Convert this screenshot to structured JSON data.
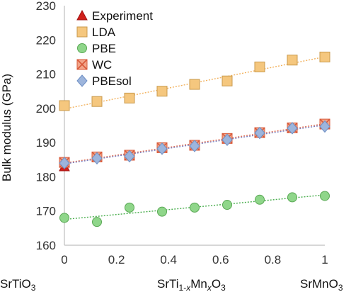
{
  "chart_data": {
    "type": "scatter",
    "title": "",
    "ylabel": "Bulk modulus (GPa)",
    "xlim": [
      0,
      1
    ],
    "ylim": [
      160,
      230
    ],
    "x_ticks": [
      0,
      0.2,
      0.4,
      0.6,
      0.8,
      1
    ],
    "x_tick_labels": [
      "0",
      "0.2",
      "0.4",
      "0.6",
      "0.8",
      "1"
    ],
    "y_ticks": [
      160,
      170,
      180,
      190,
      200,
      210,
      220,
      230
    ],
    "y_tick_labels": [
      "160",
      "170",
      "180",
      "190",
      "200",
      "210",
      "220",
      "230"
    ],
    "grid": false,
    "legend_position": "top-left",
    "category_labels": {
      "left": {
        "pre": "SrTiO",
        "sub": "3"
      },
      "middle": {
        "p1": "SrTi",
        "s1": "1-",
        "s2": "x",
        "p2": "Mn",
        "s3": "x",
        "p3": "O",
        "s4": "3"
      },
      "right": {
        "pre": "SrMnO",
        "sub": "3"
      }
    },
    "series": [
      {
        "name": "Experiment",
        "marker": "triangle",
        "color": "#d0201b",
        "edge": "#a01010",
        "trend": false,
        "x": [
          0
        ],
        "y": [
          183
        ]
      },
      {
        "name": "LDA",
        "marker": "square",
        "color": "#f5c77e",
        "edge": "#c99a4c",
        "trend": true,
        "trend_color": "#f2b25e",
        "x": [
          0,
          0.125,
          0.25,
          0.375,
          0.5,
          0.625,
          0.75,
          0.875,
          1
        ],
        "y": [
          200.8,
          202,
          203,
          205,
          207,
          208,
          212.1,
          214.1,
          215
        ]
      },
      {
        "name": "PBE",
        "marker": "circle",
        "color": "#8fd68a",
        "edge": "#5aa855",
        "trend": true,
        "trend_color": "#4caf50",
        "x": [
          0,
          0.125,
          0.25,
          0.375,
          0.5,
          0.625,
          0.75,
          0.875,
          1
        ],
        "y": [
          168,
          166.8,
          171,
          169.8,
          171,
          171.8,
          173.3,
          174,
          174.4
        ]
      },
      {
        "name": "WC",
        "marker": "x-square",
        "color": "#f2a58a",
        "edge": "#d85a3a",
        "trend": true,
        "trend_color": "#e0735a",
        "x": [
          0,
          0.125,
          0.25,
          0.375,
          0.5,
          0.625,
          0.75,
          0.875,
          1
        ],
        "y": [
          184.2,
          185.8,
          186.3,
          188.5,
          189.2,
          191.2,
          192.9,
          194.3,
          195.4
        ]
      },
      {
        "name": "PBEsol",
        "marker": "diamond",
        "color": "#9db5dc",
        "edge": "#6e8fc4",
        "trend": true,
        "trend_color": "#7a7fc0",
        "x": [
          0,
          0.125,
          0.25,
          0.375,
          0.5,
          0.625,
          0.75,
          0.875,
          1
        ],
        "y": [
          184,
          185.4,
          186,
          188.2,
          189,
          190.8,
          192.8,
          194.2,
          194.7
        ]
      }
    ]
  }
}
